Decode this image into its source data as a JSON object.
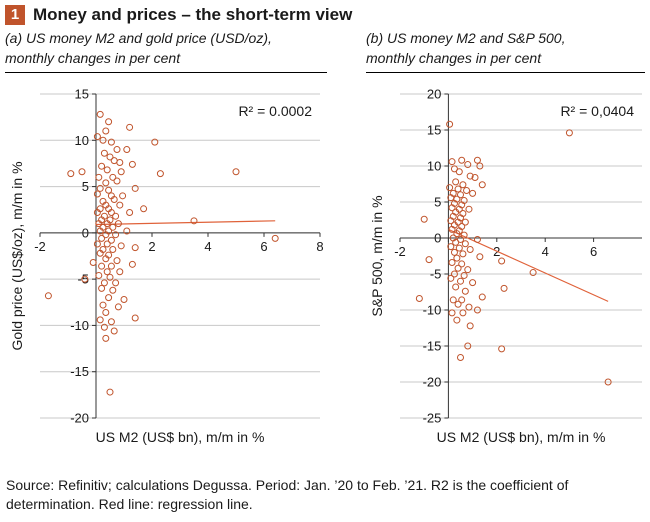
{
  "figure": {
    "number": "1",
    "title": "Money and prices – the short-term view",
    "accent_color": "#c0542c"
  },
  "source_note": "Source: Refinitiv; calculations Degussa. Period: Jan. ’20 to Feb. ’21. R2 is the coefficient of determination. Red line: regression line.",
  "colors": {
    "points": "#c0542c",
    "regression": "#e0623a",
    "grid": "#c8c8c8",
    "axis": "#333333"
  },
  "chart_data": [
    {
      "type": "scatter",
      "subtitle_line1": "(a) US money M2 and gold price (USD/oz),",
      "subtitle_line2": "monthly changes in per cent",
      "xlabel": "US M2 (US$ bn), m/m in %",
      "ylabel": "Gold price (US$/oz), m/m in %",
      "annotation": "R² = 0.0002",
      "xlim": [
        -2,
        8
      ],
      "ylim": [
        -20,
        15
      ],
      "xticks": [
        "-2",
        "0",
        "2",
        "4",
        "6",
        "8"
      ],
      "yticks": [
        "15",
        "10",
        "5",
        "0",
        "-5",
        "-10",
        "-15",
        "-20"
      ],
      "grid": "horizontal",
      "regression": {
        "x": [
          0,
          6.4
        ],
        "y": [
          0.9,
          1.3
        ]
      },
      "points": [
        [
          0.15,
          12.8
        ],
        [
          0.35,
          11.0
        ],
        [
          0.45,
          12.0
        ],
        [
          1.2,
          11.4
        ],
        [
          0.05,
          10.4
        ],
        [
          0.25,
          10.0
        ],
        [
          0.55,
          9.8
        ],
        [
          2.1,
          9.8
        ],
        [
          0.75,
          9.0
        ],
        [
          1.1,
          9.0
        ],
        [
          0.3,
          8.6
        ],
        [
          0.5,
          8.2
        ],
        [
          0.65,
          7.8
        ],
        [
          0.85,
          7.6
        ],
        [
          1.3,
          7.4
        ],
        [
          0.2,
          7.2
        ],
        [
          -0.9,
          6.4
        ],
        [
          -0.5,
          6.6
        ],
        [
          0.4,
          6.8
        ],
        [
          0.9,
          6.6
        ],
        [
          2.3,
          6.4
        ],
        [
          5.0,
          6.6
        ],
        [
          0.1,
          6.0
        ],
        [
          0.6,
          6.0
        ],
        [
          0.35,
          5.4
        ],
        [
          0.75,
          5.6
        ],
        [
          0.15,
          4.8
        ],
        [
          0.45,
          4.6
        ],
        [
          1.4,
          4.8
        ],
        [
          0.05,
          4.2
        ],
        [
          0.55,
          4.0
        ],
        [
          0.95,
          4.0
        ],
        [
          0.25,
          3.4
        ],
        [
          0.65,
          3.6
        ],
        [
          0.35,
          3.0
        ],
        [
          0.85,
          3.0
        ],
        [
          0.15,
          2.6
        ],
        [
          0.45,
          2.6
        ],
        [
          1.7,
          2.6
        ],
        [
          0.05,
          2.2
        ],
        [
          0.55,
          2.2
        ],
        [
          1.2,
          2.2
        ],
        [
          0.3,
          1.8
        ],
        [
          0.7,
          1.8
        ],
        [
          0.2,
          1.4
        ],
        [
          0.5,
          1.4
        ],
        [
          3.5,
          1.3
        ],
        [
          0.1,
          1.0
        ],
        [
          0.4,
          1.0
        ],
        [
          0.8,
          1.0
        ],
        [
          0.25,
          0.6
        ],
        [
          0.6,
          0.6
        ],
        [
          0.15,
          0.2
        ],
        [
          0.45,
          0.2
        ],
        [
          1.1,
          0.2
        ],
        [
          0.35,
          -0.2
        ],
        [
          0.7,
          -0.2
        ],
        [
          6.4,
          -0.6
        ],
        [
          0.2,
          -0.6
        ],
        [
          0.55,
          -0.8
        ],
        [
          0.05,
          -1.2
        ],
        [
          0.4,
          -1.2
        ],
        [
          0.9,
          -1.4
        ],
        [
          0.25,
          -1.8
        ],
        [
          0.6,
          -1.8
        ],
        [
          1.4,
          -1.6
        ],
        [
          0.15,
          -2.2
        ],
        [
          0.45,
          -2.4
        ],
        [
          0.35,
          -2.8
        ],
        [
          0.75,
          -3.0
        ],
        [
          -0.1,
          -3.2
        ],
        [
          0.2,
          -3.6
        ],
        [
          0.55,
          -3.6
        ],
        [
          1.3,
          -3.4
        ],
        [
          0.4,
          -4.2
        ],
        [
          0.85,
          -4.2
        ],
        [
          0.1,
          -4.6
        ],
        [
          0.5,
          -4.8
        ],
        [
          -0.4,
          -5.0
        ],
        [
          0.3,
          -5.4
        ],
        [
          0.7,
          -5.4
        ],
        [
          0.2,
          -6.0
        ],
        [
          0.6,
          -6.2
        ],
        [
          -1.7,
          -6.8
        ],
        [
          0.45,
          -7.0
        ],
        [
          1.0,
          -7.2
        ],
        [
          0.25,
          -7.8
        ],
        [
          0.8,
          -8.0
        ],
        [
          0.35,
          -8.6
        ],
        [
          1.4,
          -9.2
        ],
        [
          0.15,
          -9.4
        ],
        [
          0.55,
          -9.6
        ],
        [
          0.3,
          -10.2
        ],
        [
          0.65,
          -10.6
        ],
        [
          0.35,
          -11.4
        ],
        [
          0.5,
          -17.2
        ]
      ]
    },
    {
      "type": "scatter",
      "subtitle_line1": "(b) US money M2 and S&P 500,",
      "subtitle_line2": "monthly changes in per cent",
      "xlabel": "US M2 (US$ bn), m/m in %",
      "ylabel": "S&P 500, m/m in %",
      "annotation": "R² = 0,0404",
      "xlim": [
        -2,
        8
      ],
      "ylim": [
        -25,
        20
      ],
      "xticks": [
        "-2",
        "0",
        "2",
        "4",
        "6"
      ],
      "yticks": [
        "20",
        "15",
        "10",
        "5",
        "0",
        "-5",
        "-10",
        "-15",
        "-20",
        "-25"
      ],
      "grid": "horizontal",
      "regression": {
        "x": [
          0,
          6.6
        ],
        "y": [
          1.2,
          -8.8
        ]
      },
      "points": [
        [
          0.05,
          15.8
        ],
        [
          5.0,
          14.6
        ],
        [
          0.15,
          10.6
        ],
        [
          0.55,
          10.8
        ],
        [
          1.2,
          10.8
        ],
        [
          1.3,
          10.0
        ],
        [
          0.8,
          10.2
        ],
        [
          0.25,
          9.6
        ],
        [
          0.45,
          9.2
        ],
        [
          0.9,
          8.6
        ],
        [
          1.1,
          8.4
        ],
        [
          0.3,
          7.8
        ],
        [
          0.6,
          7.4
        ],
        [
          1.4,
          7.4
        ],
        [
          0.05,
          7.0
        ],
        [
          0.4,
          6.8
        ],
        [
          0.75,
          6.6
        ],
        [
          0.2,
          6.2
        ],
        [
          0.5,
          6.0
        ],
        [
          1.0,
          6.2
        ],
        [
          0.1,
          5.6
        ],
        [
          0.35,
          5.4
        ],
        [
          0.65,
          5.2
        ],
        [
          0.25,
          4.8
        ],
        [
          0.55,
          4.6
        ],
        [
          0.15,
          4.2
        ],
        [
          0.45,
          4.0
        ],
        [
          0.85,
          4.0
        ],
        [
          0.3,
          3.6
        ],
        [
          0.6,
          3.4
        ],
        [
          0.2,
          3.0
        ],
        [
          0.5,
          2.8
        ],
        [
          -1.0,
          2.6
        ],
        [
          0.1,
          2.4
        ],
        [
          0.4,
          2.2
        ],
        [
          0.7,
          2.2
        ],
        [
          0.25,
          1.8
        ],
        [
          0.55,
          1.6
        ],
        [
          0.15,
          1.2
        ],
        [
          0.45,
          1.0
        ],
        [
          0.35,
          0.6
        ],
        [
          0.65,
          0.4
        ],
        [
          0.2,
          0.0
        ],
        [
          0.5,
          -0.2
        ],
        [
          1.2,
          -0.2
        ],
        [
          0.3,
          -0.6
        ],
        [
          0.7,
          -0.8
        ],
        [
          0.1,
          -1.2
        ],
        [
          0.45,
          -1.4
        ],
        [
          0.9,
          -1.6
        ],
        [
          0.25,
          -2.0
        ],
        [
          0.6,
          -2.2
        ],
        [
          0.35,
          -2.8
        ],
        [
          1.3,
          -2.6
        ],
        [
          -0.8,
          -3.0
        ],
        [
          0.15,
          -3.4
        ],
        [
          0.55,
          -3.6
        ],
        [
          2.2,
          -3.2
        ],
        [
          0.4,
          -4.2
        ],
        [
          0.8,
          -4.4
        ],
        [
          3.5,
          -4.8
        ],
        [
          0.25,
          -5.0
        ],
        [
          0.65,
          -5.2
        ],
        [
          0.1,
          -5.6
        ],
        [
          0.5,
          -6.0
        ],
        [
          1.0,
          -6.2
        ],
        [
          2.3,
          -7.0
        ],
        [
          0.3,
          -6.8
        ],
        [
          0.7,
          -7.4
        ],
        [
          -1.2,
          -8.4
        ],
        [
          0.2,
          -8.6
        ],
        [
          0.55,
          -8.6
        ],
        [
          1.4,
          -8.2
        ],
        [
          0.4,
          -9.2
        ],
        [
          0.85,
          -9.6
        ],
        [
          0.15,
          -10.4
        ],
        [
          0.6,
          -10.4
        ],
        [
          1.2,
          -10.0
        ],
        [
          0.35,
          -11.4
        ],
        [
          0.9,
          -12.2
        ],
        [
          0.8,
          -15.0
        ],
        [
          2.2,
          -15.4
        ],
        [
          0.5,
          -16.6
        ],
        [
          6.6,
          -20.0
        ]
      ]
    }
  ]
}
